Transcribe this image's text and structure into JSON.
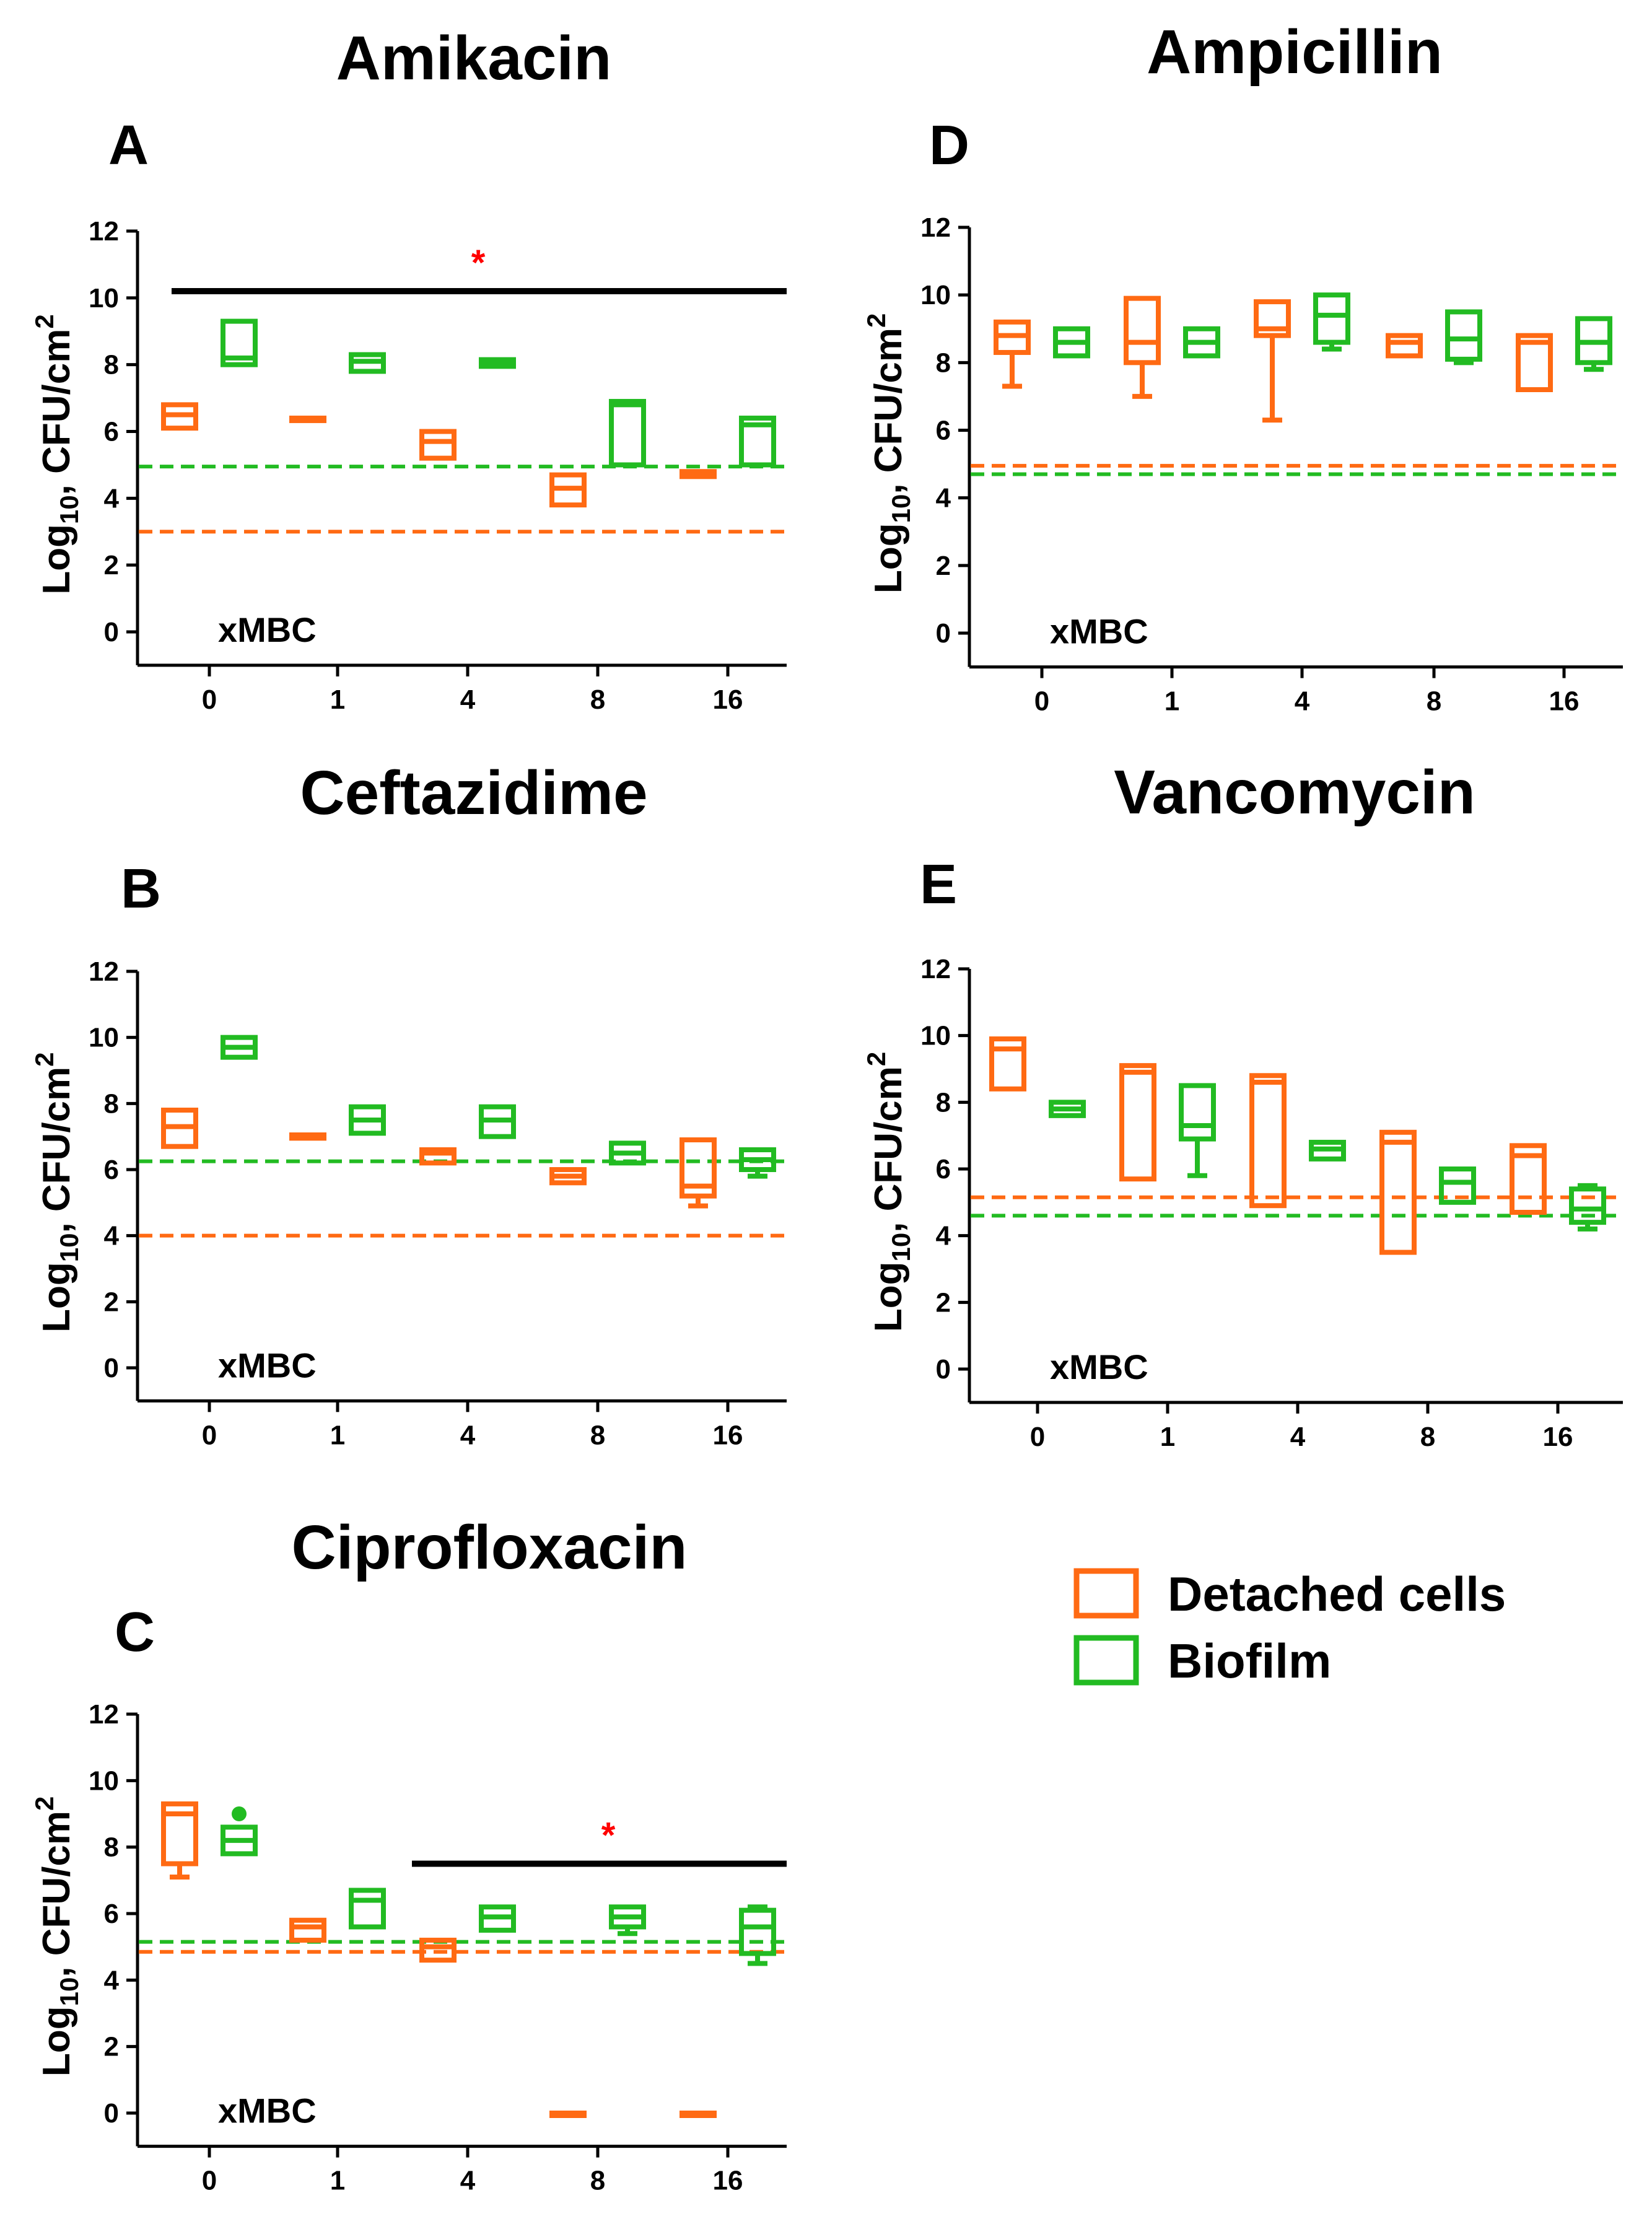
{
  "legend": {
    "detached": "Detached cells",
    "biofilm": "Biofilm"
  },
  "colors": {
    "detached": "#ff6a13",
    "biofilm": "#22bb22",
    "axis": "#000000",
    "significance": "#ff0000"
  },
  "chart_data": [
    {
      "id": "A",
      "type": "boxplot",
      "panel_letter": "A",
      "title": "Amikacin",
      "ylabel": "Log10, CFU/cm2",
      "xlabel": "xMBC",
      "categories": [
        "0",
        "1",
        "4",
        "8",
        "16"
      ],
      "yticks": [
        "0",
        "2",
        "4",
        "6",
        "8",
        "10",
        "12"
      ],
      "ylim": [
        -1,
        12
      ],
      "series": [
        {
          "name": "Detached cells",
          "boxes": [
            {
              "min": 6.1,
              "q1": 6.1,
              "median": 6.5,
              "q3": 6.8,
              "max": 6.8
            },
            {
              "min": 6.35,
              "q1": 6.35,
              "median": 6.35,
              "q3": 6.4,
              "max": 6.4
            },
            {
              "min": 5.2,
              "q1": 5.2,
              "median": 5.7,
              "q3": 6.0,
              "max": 6.0
            },
            {
              "min": 3.8,
              "q1": 3.8,
              "median": 4.3,
              "q3": 4.7,
              "max": 4.7
            },
            {
              "min": 4.65,
              "q1": 4.65,
              "median": 4.7,
              "q3": 4.8,
              "max": 4.8
            }
          ]
        },
        {
          "name": "Biofilm",
          "boxes": [
            {
              "min": 8.0,
              "q1": 8.0,
              "median": 8.2,
              "q3": 9.3,
              "max": 9.3
            },
            {
              "min": 7.8,
              "q1": 7.8,
              "median": 8.1,
              "q3": 8.3,
              "max": 8.3
            },
            {
              "min": 7.95,
              "q1": 7.95,
              "median": 8.05,
              "q3": 8.15,
              "max": 8.15
            },
            {
              "min": 5.0,
              "q1": 5.0,
              "median": 6.8,
              "q3": 6.9,
              "max": 6.9
            },
            {
              "min": 5.0,
              "q1": 5.0,
              "median": 6.2,
              "q3": 6.4,
              "max": 6.4
            }
          ]
        }
      ],
      "reference_lines": [
        {
          "series": "Biofilm",
          "y": 4.95
        },
        {
          "series": "Detached cells",
          "y": 3.0
        }
      ],
      "significance": {
        "label": "*",
        "y": 10.2,
        "from_category": "0",
        "to_category": "16",
        "extends_left": true
      }
    },
    {
      "id": "B",
      "type": "boxplot",
      "panel_letter": "B",
      "title": "Ceftazidime",
      "ylabel": "Log10, CFU/cm2",
      "xlabel": "xMBC",
      "categories": [
        "0",
        "1",
        "4",
        "8",
        "16"
      ],
      "yticks": [
        "0",
        "2",
        "4",
        "6",
        "8",
        "10",
        "12"
      ],
      "ylim": [
        -1,
        12
      ],
      "series": [
        {
          "name": "Detached cells",
          "boxes": [
            {
              "min": 6.7,
              "q1": 6.7,
              "median": 7.3,
              "q3": 7.8,
              "max": 7.8
            },
            {
              "min": 6.95,
              "q1": 6.95,
              "median": 7.0,
              "q3": 7.05,
              "max": 7.05
            },
            {
              "min": 6.2,
              "q1": 6.2,
              "median": 6.5,
              "q3": 6.6,
              "max": 6.6
            },
            {
              "min": 5.6,
              "q1": 5.6,
              "median": 5.8,
              "q3": 6.0,
              "max": 6.0
            },
            {
              "min": 4.9,
              "q1": 5.2,
              "median": 5.5,
              "q3": 6.9,
              "max": 6.9
            }
          ]
        },
        {
          "name": "Biofilm",
          "boxes": [
            {
              "min": 9.4,
              "q1": 9.4,
              "median": 9.7,
              "q3": 10.0,
              "max": 10.0
            },
            {
              "min": 7.1,
              "q1": 7.1,
              "median": 7.5,
              "q3": 7.9,
              "max": 7.9
            },
            {
              "min": 7.0,
              "q1": 7.0,
              "median": 7.5,
              "q3": 7.9,
              "max": 7.9
            },
            {
              "min": 6.2,
              "q1": 6.2,
              "median": 6.5,
              "q3": 6.8,
              "max": 6.8
            },
            {
              "min": 5.8,
              "q1": 6.0,
              "median": 6.3,
              "q3": 6.6,
              "max": 6.6
            }
          ]
        }
      ],
      "reference_lines": [
        {
          "series": "Biofilm",
          "y": 6.25
        },
        {
          "series": "Detached cells",
          "y": 4.0
        }
      ]
    },
    {
      "id": "C",
      "type": "boxplot",
      "panel_letter": "C",
      "title": "Ciprofloxacin",
      "ylabel": "Log10, CFU/cm2",
      "xlabel": "xMBC",
      "categories": [
        "0",
        "1",
        "4",
        "8",
        "16"
      ],
      "yticks": [
        "0",
        "2",
        "4",
        "6",
        "8",
        "10",
        "12"
      ],
      "ylim": [
        -1,
        12
      ],
      "series": [
        {
          "name": "Detached cells",
          "boxes": [
            {
              "min": 7.1,
              "q1": 7.5,
              "median": 9.0,
              "q3": 9.3,
              "max": 9.3
            },
            {
              "min": 5.2,
              "q1": 5.2,
              "median": 5.6,
              "q3": 5.8,
              "max": 5.8
            },
            {
              "min": 4.6,
              "q1": 4.6,
              "median": 5.0,
              "q3": 5.2,
              "max": 5.2
            },
            {
              "min": 0,
              "q1": 0,
              "median": 0,
              "q3": 0,
              "max": 0
            },
            {
              "min": 0,
              "q1": 0,
              "median": 0,
              "q3": 0,
              "max": 0
            }
          ]
        },
        {
          "name": "Biofilm",
          "boxes": [
            {
              "min": 7.8,
              "q1": 7.8,
              "median": 8.2,
              "q3": 8.6,
              "max": 8.6,
              "outlier": 9.0
            },
            {
              "min": 5.6,
              "q1": 5.6,
              "median": 6.4,
              "q3": 6.7,
              "max": 6.7
            },
            {
              "min": 5.5,
              "q1": 5.5,
              "median": 5.9,
              "q3": 6.2,
              "max": 6.2
            },
            {
              "min": 5.4,
              "q1": 5.6,
              "median": 5.9,
              "q3": 6.2,
              "max": 6.2
            },
            {
              "min": 4.5,
              "q1": 4.8,
              "median": 5.6,
              "q3": 6.1,
              "max": 6.2
            }
          ]
        }
      ],
      "reference_lines": [
        {
          "series": "Biofilm",
          "y": 5.15
        },
        {
          "series": "Detached cells",
          "y": 4.85
        }
      ],
      "significance": {
        "label": "*",
        "y": 7.5,
        "from_category": "4",
        "to_category": "16",
        "extends_left": true
      }
    },
    {
      "id": "D",
      "type": "boxplot",
      "panel_letter": "D",
      "title": "Ampicillin",
      "ylabel": "Log10, CFU/cm2",
      "xlabel": "xMBC",
      "categories": [
        "0",
        "1",
        "4",
        "8",
        "16"
      ],
      "yticks": [
        "0",
        "2",
        "4",
        "6",
        "8",
        "10",
        "12"
      ],
      "ylim": [
        -1,
        12
      ],
      "series": [
        {
          "name": "Detached cells",
          "boxes": [
            {
              "min": 7.3,
              "q1": 8.3,
              "median": 8.8,
              "q3": 9.2,
              "max": 9.2
            },
            {
              "min": 7.0,
              "q1": 8.0,
              "median": 8.6,
              "q3": 9.9,
              "max": 9.9
            },
            {
              "min": 6.3,
              "q1": 8.8,
              "median": 9.0,
              "q3": 9.8,
              "max": 9.8
            },
            {
              "min": 8.2,
              "q1": 8.2,
              "median": 8.6,
              "q3": 8.8,
              "max": 8.8
            },
            {
              "min": 7.2,
              "q1": 7.2,
              "median": 8.6,
              "q3": 8.8,
              "max": 8.8
            }
          ]
        },
        {
          "name": "Biofilm",
          "boxes": [
            {
              "min": 8.2,
              "q1": 8.2,
              "median": 8.6,
              "q3": 9.0,
              "max": 9.0
            },
            {
              "min": 8.2,
              "q1": 8.2,
              "median": 8.6,
              "q3": 9.0,
              "max": 9.0
            },
            {
              "min": 8.4,
              "q1": 8.6,
              "median": 9.4,
              "q3": 10.0,
              "max": 10.0
            },
            {
              "min": 8.0,
              "q1": 8.1,
              "median": 8.7,
              "q3": 9.5,
              "max": 9.5
            },
            {
              "min": 7.8,
              "q1": 8.0,
              "median": 8.6,
              "q3": 9.3,
              "max": 9.3
            }
          ]
        }
      ],
      "reference_lines": [
        {
          "series": "Detached cells",
          "y": 4.95
        },
        {
          "series": "Biofilm",
          "y": 4.7
        }
      ]
    },
    {
      "id": "E",
      "type": "boxplot",
      "panel_letter": "E",
      "title": "Vancomycin",
      "ylabel": "Log10, CFU/cm2",
      "xlabel": "xMBC",
      "categories": [
        "0",
        "1",
        "4",
        "8",
        "16"
      ],
      "yticks": [
        "0",
        "2",
        "4",
        "6",
        "8",
        "10",
        "12"
      ],
      "ylim": [
        -1,
        12
      ],
      "series": [
        {
          "name": "Detached cells",
          "boxes": [
            {
              "min": 8.4,
              "q1": 8.4,
              "median": 9.6,
              "q3": 9.9,
              "max": 9.9
            },
            {
              "min": 5.7,
              "q1": 5.7,
              "median": 8.9,
              "q3": 9.1,
              "max": 9.1
            },
            {
              "min": 4.9,
              "q1": 4.9,
              "median": 8.6,
              "q3": 8.8,
              "max": 8.8
            },
            {
              "min": 3.5,
              "q1": 3.5,
              "median": 6.8,
              "q3": 7.1,
              "max": 7.1
            },
            {
              "min": 4.7,
              "q1": 4.7,
              "median": 6.4,
              "q3": 6.7,
              "max": 6.7
            }
          ]
        },
        {
          "name": "Biofilm",
          "boxes": [
            {
              "min": 7.6,
              "q1": 7.6,
              "median": 7.8,
              "q3": 8.0,
              "max": 8.0
            },
            {
              "min": 5.8,
              "q1": 6.9,
              "median": 7.3,
              "q3": 8.5,
              "max": 8.5
            },
            {
              "min": 6.3,
              "q1": 6.3,
              "median": 6.6,
              "q3": 6.8,
              "max": 6.8
            },
            {
              "min": 5.0,
              "q1": 5.0,
              "median": 5.6,
              "q3": 6.0,
              "max": 6.0
            },
            {
              "min": 4.2,
              "q1": 4.4,
              "median": 4.8,
              "q3": 5.4,
              "max": 5.5
            }
          ]
        }
      ],
      "reference_lines": [
        {
          "series": "Detached cells",
          "y": 5.15
        },
        {
          "series": "Biofilm",
          "y": 4.6
        }
      ]
    }
  ]
}
